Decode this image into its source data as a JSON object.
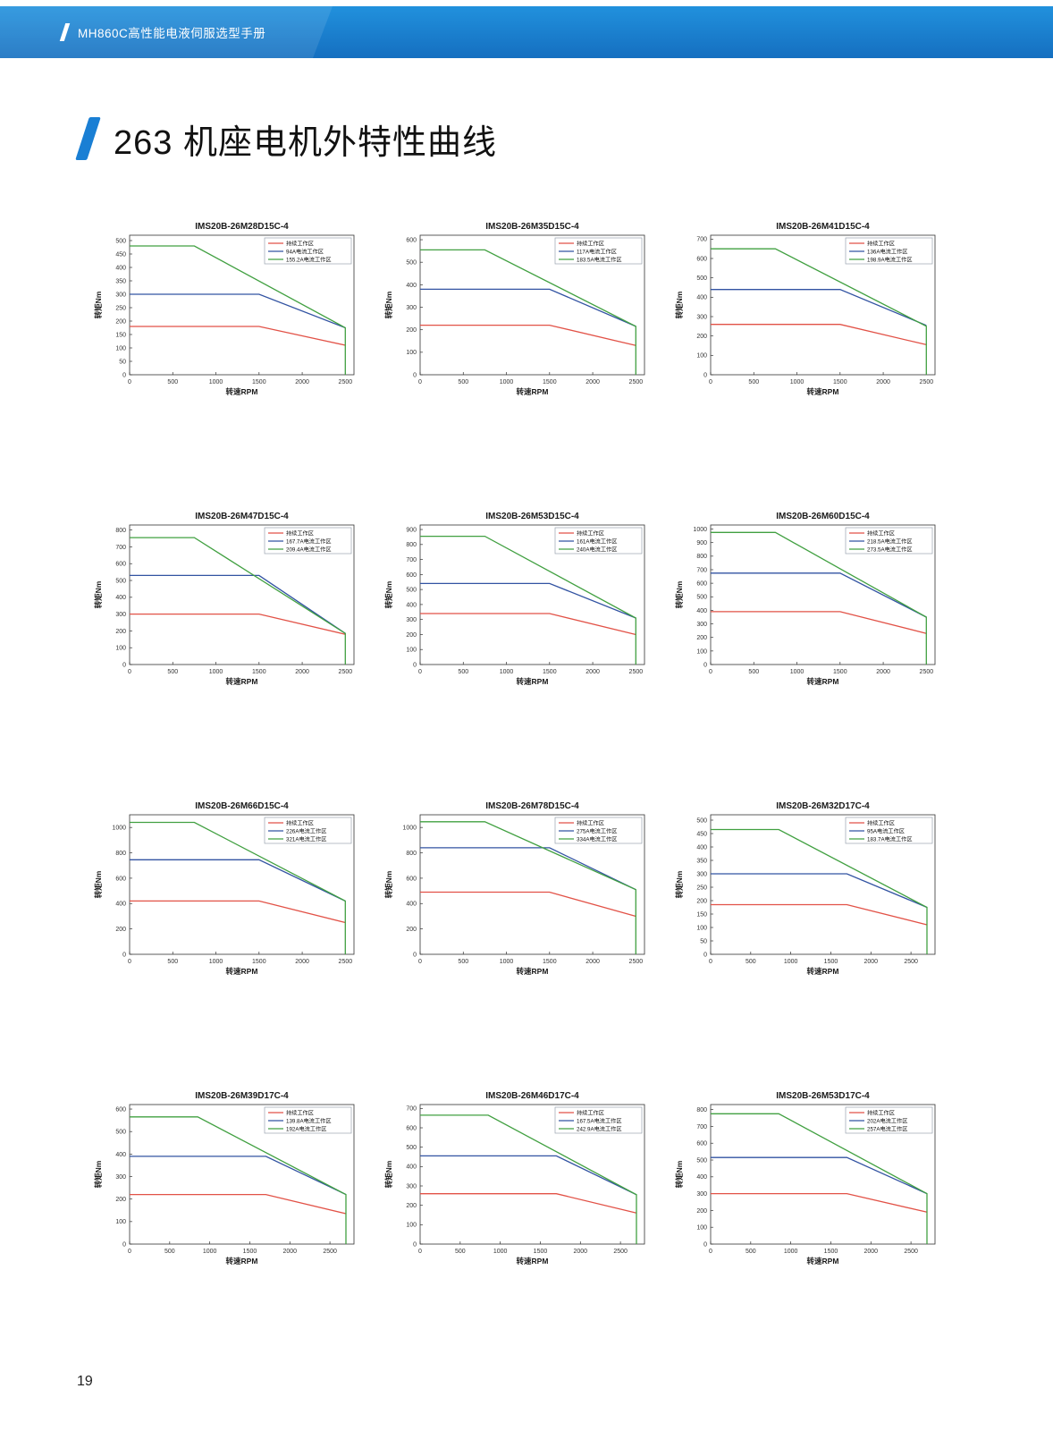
{
  "header": {
    "manual_title": "MH860C高性能电液伺服选型手册"
  },
  "section": {
    "title": "263 机座电机外特性曲线"
  },
  "footer": {
    "page_number": "19"
  },
  "colors": {
    "accent_blue": "#1a7fd4",
    "header_bar": "#1b82d6",
    "line_red": "#e25247",
    "line_blue": "#3253a2",
    "line_green": "#41a041"
  },
  "chart_data": [
    {
      "type": "line",
      "title": "IMS20B-26M28D15C-4",
      "xlabel": "转速RPM",
      "ylabel": "转矩Nm",
      "xlim": [
        0,
        2600
      ],
      "ylim": [
        0,
        520
      ],
      "xticks": [
        0,
        500,
        1000,
        1500,
        2000,
        2500
      ],
      "yticks": [
        0,
        50,
        100,
        150,
        200,
        250,
        300,
        350,
        400,
        450,
        500
      ],
      "grid": false,
      "legend_position": "top-right",
      "series": [
        {
          "name": "持续工作区",
          "color_key": "red",
          "points": [
            [
              0,
              180
            ],
            [
              1500,
              180
            ],
            [
              2500,
              110
            ]
          ]
        },
        {
          "name": "94A电流工作区",
          "color_key": "blue",
          "points": [
            [
              0,
              300
            ],
            [
              1500,
              300
            ],
            [
              2500,
              175
            ]
          ]
        },
        {
          "name": "155.2A电流工作区",
          "color_key": "green",
          "points": [
            [
              0,
              480
            ],
            [
              750,
              480
            ],
            [
              2500,
              175
            ],
            [
              2500,
              0
            ]
          ]
        }
      ]
    },
    {
      "type": "line",
      "title": "IMS20B-26M35D15C-4",
      "xlabel": "转速RPM",
      "ylabel": "转矩Nm",
      "xlim": [
        0,
        2600
      ],
      "ylim": [
        0,
        620
      ],
      "xticks": [
        0,
        500,
        1000,
        1500,
        2000,
        2500
      ],
      "yticks": [
        0,
        100,
        200,
        300,
        400,
        500,
        600
      ],
      "grid": false,
      "legend_position": "top-right",
      "series": [
        {
          "name": "持续工作区",
          "color_key": "red",
          "points": [
            [
              0,
              220
            ],
            [
              1500,
              220
            ],
            [
              2500,
              130
            ]
          ]
        },
        {
          "name": "117A电流工作区",
          "color_key": "blue",
          "points": [
            [
              0,
              380
            ],
            [
              1500,
              380
            ],
            [
              2500,
              215
            ]
          ]
        },
        {
          "name": "183.5A电流工作区",
          "color_key": "green",
          "points": [
            [
              0,
              555
            ],
            [
              750,
              555
            ],
            [
              2500,
              215
            ],
            [
              2500,
              0
            ]
          ]
        }
      ]
    },
    {
      "type": "line",
      "title": "IMS20B-26M41D15C-4",
      "xlabel": "转速RPM",
      "ylabel": "转矩Nm",
      "xlim": [
        0,
        2600
      ],
      "ylim": [
        0,
        720
      ],
      "xticks": [
        0,
        500,
        1000,
        1500,
        2000,
        2500
      ],
      "yticks": [
        0,
        100,
        200,
        300,
        400,
        500,
        600,
        700
      ],
      "grid": false,
      "legend_position": "top-right",
      "series": [
        {
          "name": "持续工作区",
          "color_key": "red",
          "points": [
            [
              0,
              260
            ],
            [
              1500,
              260
            ],
            [
              2500,
              155
            ]
          ]
        },
        {
          "name": "136A电流工作区",
          "color_key": "blue",
          "points": [
            [
              0,
              440
            ],
            [
              1500,
              440
            ],
            [
              2500,
              255
            ]
          ]
        },
        {
          "name": "198.9A电流工作区",
          "color_key": "green",
          "points": [
            [
              0,
              650
            ],
            [
              750,
              650
            ],
            [
              2500,
              250
            ],
            [
              2500,
              0
            ]
          ]
        }
      ]
    },
    {
      "type": "line",
      "title": "IMS20B-26M47D15C-4",
      "xlabel": "转速RPM",
      "ylabel": "转矩Nm",
      "xlim": [
        0,
        2600
      ],
      "ylim": [
        0,
        830
      ],
      "xticks": [
        0,
        500,
        1000,
        1500,
        2000,
        2500
      ],
      "yticks": [
        0,
        100,
        200,
        300,
        400,
        500,
        600,
        700,
        800
      ],
      "grid": false,
      "legend_position": "top-right",
      "series": [
        {
          "name": "持续工作区",
          "color_key": "red",
          "points": [
            [
              0,
              300
            ],
            [
              1500,
              300
            ],
            [
              2500,
              180
            ]
          ]
        },
        {
          "name": "167.7A电流工作区",
          "color_key": "blue",
          "points": [
            [
              0,
              530
            ],
            [
              1500,
              530
            ],
            [
              2500,
              185
            ]
          ]
        },
        {
          "name": "209.4A电流工作区",
          "color_key": "green",
          "points": [
            [
              0,
              755
            ],
            [
              750,
              755
            ],
            [
              2500,
              185
            ],
            [
              2500,
              0
            ]
          ]
        }
      ]
    },
    {
      "type": "line",
      "title": "IMS20B-26M53D15C-4",
      "xlabel": "转速RPM",
      "ylabel": "转矩Nm",
      "xlim": [
        0,
        2600
      ],
      "ylim": [
        0,
        930
      ],
      "xticks": [
        0,
        500,
        1000,
        1500,
        2000,
        2500
      ],
      "yticks": [
        0,
        100,
        200,
        300,
        400,
        500,
        600,
        700,
        800,
        900
      ],
      "grid": false,
      "legend_position": "top-right",
      "series": [
        {
          "name": "持续工作区",
          "color_key": "red",
          "points": [
            [
              0,
              340
            ],
            [
              1500,
              340
            ],
            [
              2500,
              200
            ]
          ]
        },
        {
          "name": "161A电流工作区",
          "color_key": "blue",
          "points": [
            [
              0,
              540
            ],
            [
              1500,
              540
            ],
            [
              2500,
              310
            ]
          ]
        },
        {
          "name": "240A电流工作区",
          "color_key": "green",
          "points": [
            [
              0,
              855
            ],
            [
              750,
              855
            ],
            [
              2500,
              310
            ],
            [
              2500,
              0
            ]
          ]
        }
      ]
    },
    {
      "type": "line",
      "title": "IMS20B-26M60D15C-4",
      "xlabel": "转速RPM",
      "ylabel": "转矩Nm",
      "xlim": [
        0,
        2600
      ],
      "ylim": [
        0,
        1030
      ],
      "xticks": [
        0,
        500,
        1000,
        1500,
        2000,
        2500
      ],
      "yticks": [
        0,
        100,
        200,
        300,
        400,
        500,
        600,
        700,
        800,
        900,
        1000
      ],
      "grid": false,
      "legend_position": "top-right",
      "series": [
        {
          "name": "持续工作区",
          "color_key": "red",
          "points": [
            [
              0,
              390
            ],
            [
              1500,
              390
            ],
            [
              2500,
              230
            ]
          ]
        },
        {
          "name": "218.5A电流工作区",
          "color_key": "blue",
          "points": [
            [
              0,
              675
            ],
            [
              1500,
              675
            ],
            [
              2500,
              350
            ]
          ]
        },
        {
          "name": "273.5A电流工作区",
          "color_key": "green",
          "points": [
            [
              0,
              975
            ],
            [
              750,
              975
            ],
            [
              2500,
              350
            ],
            [
              2500,
              0
            ]
          ]
        }
      ]
    },
    {
      "type": "line",
      "title": "IMS20B-26M66D15C-4",
      "xlabel": "转速RPM",
      "ylabel": "转矩Nm",
      "xlim": [
        0,
        2600
      ],
      "ylim": [
        0,
        1100
      ],
      "xticks": [
        0,
        500,
        1000,
        1500,
        2000,
        2500
      ],
      "yticks": [
        0,
        200,
        400,
        600,
        800,
        1000
      ],
      "grid": false,
      "legend_position": "top-right",
      "series": [
        {
          "name": "持续工作区",
          "color_key": "red",
          "points": [
            [
              0,
              420
            ],
            [
              1500,
              420
            ],
            [
              2500,
              250
            ]
          ]
        },
        {
          "name": "226A电流工作区",
          "color_key": "blue",
          "points": [
            [
              0,
              745
            ],
            [
              1500,
              745
            ],
            [
              2500,
              420
            ]
          ]
        },
        {
          "name": "321A电流工作区",
          "color_key": "green",
          "points": [
            [
              0,
              1040
            ],
            [
              750,
              1040
            ],
            [
              2500,
              420
            ],
            [
              2500,
              0
            ]
          ]
        }
      ]
    },
    {
      "type": "line",
      "title": "IMS20B-26M78D15C-4",
      "xlabel": "转速RPM",
      "ylabel": "转矩Nm",
      "xlim": [
        0,
        2600
      ],
      "ylim": [
        0,
        1100
      ],
      "xticks": [
        0,
        500,
        1000,
        1500,
        2000,
        2500
      ],
      "yticks": [
        0,
        200,
        400,
        600,
        800,
        1000
      ],
      "grid": false,
      "legend_position": "top-right",
      "series": [
        {
          "name": "持续工作区",
          "color_key": "red",
          "points": [
            [
              0,
              490
            ],
            [
              1500,
              490
            ],
            [
              2500,
              300
            ]
          ]
        },
        {
          "name": "275A电流工作区",
          "color_key": "blue",
          "points": [
            [
              0,
              840
            ],
            [
              1500,
              840
            ],
            [
              2500,
              510
            ]
          ]
        },
        {
          "name": "334A电流工作区",
          "color_key": "green",
          "points": [
            [
              0,
              1045
            ],
            [
              750,
              1045
            ],
            [
              2500,
              510
            ],
            [
              2500,
              0
            ]
          ]
        }
      ]
    },
    {
      "type": "line",
      "title": "IMS20B-26M32D17C-4",
      "xlabel": "转速RPM",
      "ylabel": "转矩Nm",
      "xlim": [
        0,
        2800
      ],
      "ylim": [
        0,
        520
      ],
      "xticks": [
        0,
        500,
        1000,
        1500,
        2000,
        2500
      ],
      "yticks": [
        0,
        50,
        100,
        150,
        200,
        250,
        300,
        350,
        400,
        450,
        500
      ],
      "grid": false,
      "legend_position": "top-right",
      "series": [
        {
          "name": "持续工作区",
          "color_key": "red",
          "points": [
            [
              0,
              185
            ],
            [
              1700,
              185
            ],
            [
              2700,
              110
            ]
          ]
        },
        {
          "name": "95A电流工作区",
          "color_key": "blue",
          "points": [
            [
              0,
              300
            ],
            [
              1700,
              300
            ],
            [
              2700,
              175
            ]
          ]
        },
        {
          "name": "183.7A电流工作区",
          "color_key": "green",
          "points": [
            [
              0,
              465
            ],
            [
              850,
              465
            ],
            [
              2700,
              175
            ],
            [
              2700,
              0
            ]
          ]
        }
      ]
    },
    {
      "type": "line",
      "title": "IMS20B-26M39D17C-4",
      "xlabel": "转速RPM",
      "ylabel": "转矩Nm",
      "xlim": [
        0,
        2800
      ],
      "ylim": [
        0,
        620
      ],
      "xticks": [
        0,
        500,
        1000,
        1500,
        2000,
        2500
      ],
      "yticks": [
        0,
        100,
        200,
        300,
        400,
        500,
        600
      ],
      "grid": false,
      "legend_position": "top-right",
      "series": [
        {
          "name": "持续工作区",
          "color_key": "red",
          "points": [
            [
              0,
              220
            ],
            [
              1700,
              220
            ],
            [
              2700,
              135
            ]
          ]
        },
        {
          "name": "139.8A电流工作区",
          "color_key": "blue",
          "points": [
            [
              0,
              390
            ],
            [
              1700,
              390
            ],
            [
              2700,
              220
            ]
          ]
        },
        {
          "name": "192A电流工作区",
          "color_key": "green",
          "points": [
            [
              0,
              565
            ],
            [
              850,
              565
            ],
            [
              2700,
              220
            ],
            [
              2700,
              0
            ]
          ]
        }
      ]
    },
    {
      "type": "line",
      "title": "IMS20B-26M46D17C-4",
      "xlabel": "转速RPM",
      "ylabel": "转矩Nm",
      "xlim": [
        0,
        2800
      ],
      "ylim": [
        0,
        720
      ],
      "xticks": [
        0,
        500,
        1000,
        1500,
        2000,
        2500
      ],
      "yticks": [
        0,
        100,
        200,
        300,
        400,
        500,
        600,
        700
      ],
      "grid": false,
      "legend_position": "top-right",
      "series": [
        {
          "name": "持续工作区",
          "color_key": "red",
          "points": [
            [
              0,
              260
            ],
            [
              1700,
              260
            ],
            [
              2700,
              160
            ]
          ]
        },
        {
          "name": "167.5A电流工作区",
          "color_key": "blue",
          "points": [
            [
              0,
              455
            ],
            [
              1700,
              455
            ],
            [
              2700,
              255
            ]
          ]
        },
        {
          "name": "242.9A电流工作区",
          "color_key": "green",
          "points": [
            [
              0,
              665
            ],
            [
              850,
              665
            ],
            [
              2700,
              255
            ],
            [
              2700,
              0
            ]
          ]
        }
      ]
    },
    {
      "type": "line",
      "title": "IMS20B-26M53D17C-4",
      "xlabel": "转速RPM",
      "ylabel": "转矩Nm",
      "xlim": [
        0,
        2800
      ],
      "ylim": [
        0,
        830
      ],
      "xticks": [
        0,
        500,
        1000,
        1500,
        2000,
        2500
      ],
      "yticks": [
        0,
        100,
        200,
        300,
        400,
        500,
        600,
        700,
        800
      ],
      "grid": false,
      "legend_position": "top-right",
      "series": [
        {
          "name": "持续工作区",
          "color_key": "red",
          "points": [
            [
              0,
              300
            ],
            [
              1700,
              300
            ],
            [
              2700,
              190
            ]
          ]
        },
        {
          "name": "202A电流工作区",
          "color_key": "blue",
          "points": [
            [
              0,
              515
            ],
            [
              1700,
              515
            ],
            [
              2700,
              300
            ]
          ]
        },
        {
          "name": "257A电流工作区",
          "color_key": "green",
          "points": [
            [
              0,
              775
            ],
            [
              850,
              775
            ],
            [
              2700,
              300
            ],
            [
              2700,
              0
            ]
          ]
        }
      ]
    }
  ]
}
